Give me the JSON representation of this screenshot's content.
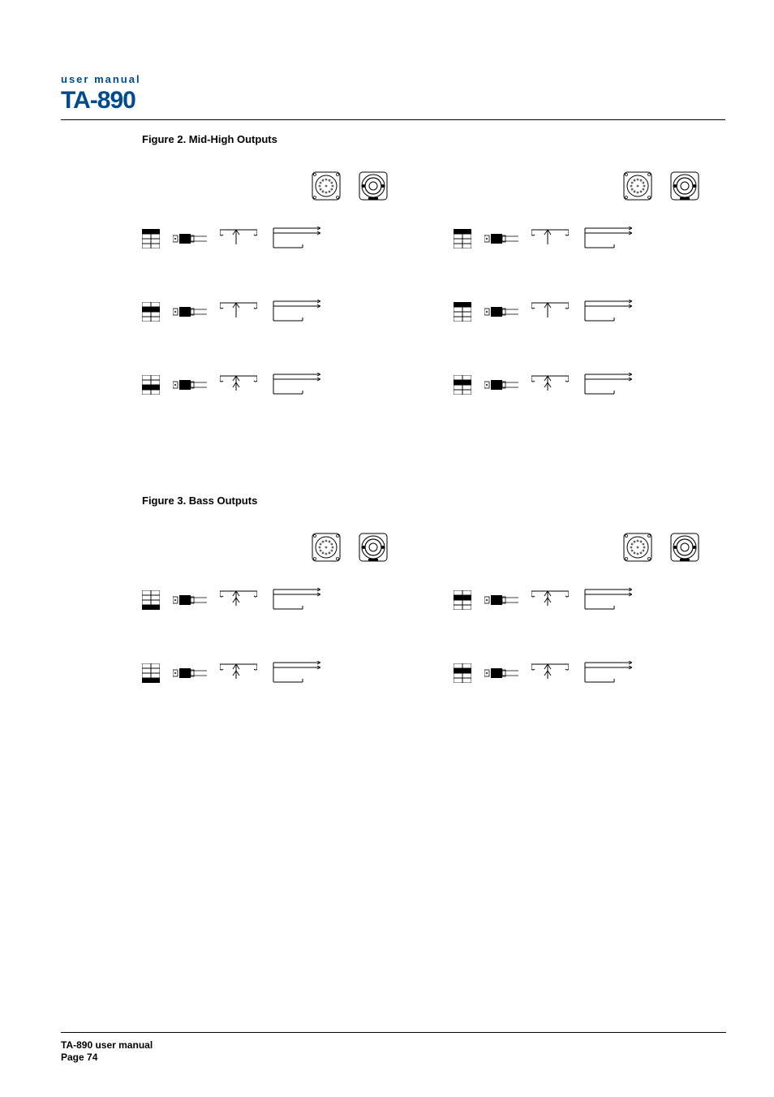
{
  "header": {
    "small": "user manual",
    "product": "TA-890"
  },
  "figure2": {
    "caption": "Figure 2. Mid-High Outputs",
    "left": {
      "rows": [
        {
          "slider_fill_row": 1,
          "arrows": 1
        },
        {
          "slider_fill_row": 2,
          "arrows": 1
        },
        {
          "slider_fill_row": 3,
          "arrows": 2
        }
      ]
    },
    "right": {
      "rows": [
        {
          "slider_fill_row": 1,
          "arrows": 1
        },
        {
          "slider_fill_row": 1,
          "arrows": 1
        },
        {
          "slider_fill_row": 2,
          "arrows": 2
        }
      ]
    }
  },
  "figure3": {
    "caption": "Figure 3. Bass Outputs",
    "left": {
      "rows": [
        {
          "slider_fill_row": 4,
          "arrows": 2
        },
        {
          "slider_fill_row": 4,
          "arrows": 2
        }
      ]
    },
    "right": {
      "rows": [
        {
          "slider_fill_row": 2,
          "arrows": 2
        },
        {
          "slider_fill_row": 2,
          "arrows": 2
        }
      ]
    }
  },
  "footer": {
    "line1": "TA-890 user manual",
    "line2": "Page 74"
  },
  "colors": {
    "brand": "#004a8f",
    "line": "#000000",
    "bg": "#ffffff"
  }
}
